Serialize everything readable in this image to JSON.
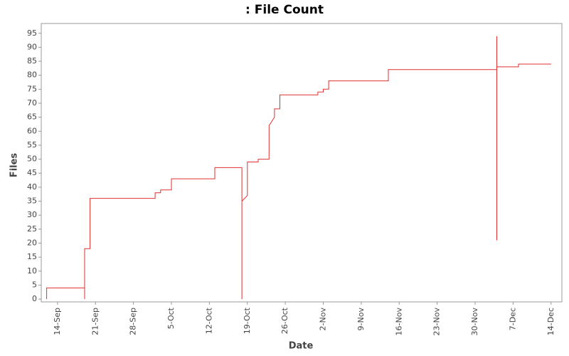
{
  "chart_data": {
    "type": "line",
    "title": ": File Count",
    "x_label": "Date",
    "y_label": "Files",
    "step": false,
    "color": "#e03030",
    "series": [
      {
        "color": "#e03030",
        "x": [
          "12-Sep",
          "12-Sep",
          "19-Sep",
          "19-Sep",
          "19-Sep",
          "19-Sep",
          "19-Sep",
          "20-Sep",
          "20-Sep",
          "2-Oct",
          "2-Oct",
          "3-Oct",
          "3-Oct",
          "5-Oct",
          "5-Oct",
          "13-Oct",
          "13-Oct",
          "18-Oct",
          "18-Oct",
          "18-Oct",
          "19-Oct",
          "19-Oct",
          "21-Oct",
          "21-Oct",
          "23-Oct",
          "23-Oct",
          "23-Oct",
          "24-Oct",
          "24-Oct",
          "25-Oct",
          "25-Oct",
          "1-Nov",
          "1-Nov",
          "2-Nov",
          "2-Nov",
          "3-Nov",
          "3-Nov",
          "14-Nov",
          "14-Nov",
          "4-Dec",
          "4-Dec",
          "4-Dec",
          "4-Dec",
          "4-Dec",
          "8-Dec",
          "8-Dec",
          "14-Dec"
        ],
        "values": [
          0,
          4,
          4,
          0,
          7,
          17,
          18,
          18,
          36,
          36,
          38,
          38,
          39,
          39,
          43,
          43,
          47,
          47,
          0,
          35,
          37,
          49,
          49,
          50,
          50,
          60,
          62,
          65,
          68,
          68,
          73,
          73,
          74,
          74,
          75,
          75,
          78,
          78,
          82,
          82,
          85,
          94,
          21,
          83,
          83,
          84,
          84
        ]
      }
    ],
    "xlim": [
      "11-Sep",
      "16-Dec"
    ],
    "xticks": [
      "14-Sep",
      "21-Sep",
      "28-Sep",
      "5-Oct",
      "12-Oct",
      "19-Oct",
      "26-Oct",
      "2-Nov",
      "9-Nov",
      "16-Nov",
      "23-Nov",
      "30-Nov",
      "7-Dec",
      "14-Dec"
    ],
    "ylim": [
      -1,
      98.5
    ],
    "yticks": [
      0,
      5,
      10,
      15,
      20,
      25,
      30,
      35,
      40,
      45,
      50,
      55,
      60,
      65,
      70,
      75,
      80,
      85,
      90,
      95
    ],
    "grid": false
  }
}
